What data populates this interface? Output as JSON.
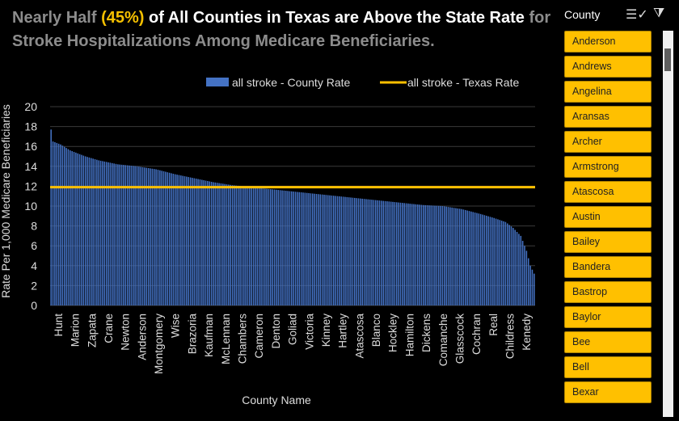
{
  "title": {
    "part1": "Nearly Half",
    "part2": "(45%)",
    "part3": "of All Counties in Texas are Above the State Rate",
    "part4": "for Stroke Hospitalizations Among Medicare Beneficiaries."
  },
  "colors": {
    "bar": "#4472c4",
    "line": "#ffc000",
    "accent": "#f5c000",
    "slicer_item": "#ffc000"
  },
  "slicer": {
    "header": "County",
    "items": [
      "Anderson",
      "Andrews",
      "Angelina",
      "Aransas",
      "Archer",
      "Armstrong",
      "Atascosa",
      "Austin",
      "Bailey",
      "Bandera",
      "Bastrop",
      "Baylor",
      "Bee",
      "Bell",
      "Bexar"
    ]
  },
  "chart_data": {
    "type": "bar",
    "xlabel": "County Name",
    "ylabel": "Rate Per 1,000 Medicare Beneficiaries",
    "ylim": [
      0,
      20
    ],
    "yticks": [
      0,
      2,
      4,
      6,
      8,
      10,
      12,
      14,
      16,
      18,
      20
    ],
    "tick_labels": [
      "Hunt",
      "Marion",
      "Zapata",
      "Crane",
      "Newton",
      "Anderson",
      "Montgomery",
      "Wise",
      "Brazoria",
      "Kaufman",
      "McLennan",
      "Chambers",
      "Cameron",
      "Denton",
      "Goliad",
      "Victoria",
      "Kinney",
      "Hartley",
      "Atascosa",
      "Blanco",
      "Hockley",
      "Hamilton",
      "Dickens",
      "Comanche",
      "Glasscock",
      "Cochran",
      "Real",
      "Childress",
      "Kenedy"
    ],
    "series": [
      {
        "name": "all stroke - County Rate",
        "type": "bar",
        "num_bars": 254,
        "profile": [
          [
            0,
            17.7
          ],
          [
            1,
            16.5
          ],
          [
            5,
            16.2
          ],
          [
            10,
            15.6
          ],
          [
            18,
            15.0
          ],
          [
            25,
            14.6
          ],
          [
            35,
            14.2
          ],
          [
            45,
            14.0
          ],
          [
            55,
            13.7
          ],
          [
            65,
            13.2
          ],
          [
            75,
            12.8
          ],
          [
            85,
            12.4
          ],
          [
            95,
            12.1
          ],
          [
            105,
            11.9
          ],
          [
            115,
            11.7
          ],
          [
            125,
            11.5
          ],
          [
            135,
            11.3
          ],
          [
            145,
            11.1
          ],
          [
            155,
            10.9
          ],
          [
            165,
            10.7
          ],
          [
            175,
            10.5
          ],
          [
            185,
            10.3
          ],
          [
            195,
            10.1
          ],
          [
            205,
            10.0
          ],
          [
            215,
            9.7
          ],
          [
            225,
            9.2
          ],
          [
            232,
            8.8
          ],
          [
            238,
            8.4
          ],
          [
            242,
            7.8
          ],
          [
            246,
            7.0
          ],
          [
            249,
            5.5
          ],
          [
            251,
            4.0
          ],
          [
            253,
            3.2
          ]
        ]
      },
      {
        "name": "all stroke - Texas Rate",
        "type": "line",
        "value": 11.9
      }
    ],
    "legend": "top",
    "grid": true
  }
}
